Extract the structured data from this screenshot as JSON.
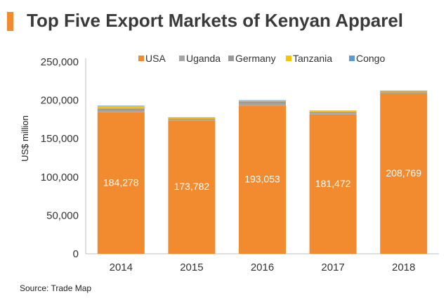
{
  "title": "Top Five Export Markets of Kenyan Apparel",
  "source": "Source: Trade Map",
  "chart_data": {
    "type": "bar",
    "stacked": true,
    "title": "Top Five Export Markets of Kenyan Apparel",
    "xlabel": "",
    "ylabel": "US$ million",
    "ylim": [
      0,
      250000
    ],
    "yticks": [
      "0",
      "50,000",
      "100,000",
      "150,000",
      "200,000",
      "250,000"
    ],
    "categories": [
      "2014",
      "2015",
      "2016",
      "2017",
      "2018"
    ],
    "legend_position": "top",
    "grid": false,
    "series": [
      {
        "name": "USA",
        "color": "#f28a30",
        "values": [
          184278,
          173782,
          193053,
          181472,
          208769
        ],
        "labels": [
          "184,278",
          "173,782",
          "193,053",
          "181,472",
          "208,769"
        ]
      },
      {
        "name": "Uganda",
        "color": "#a5a5a5",
        "values": [
          2000,
          1000,
          2500,
          1500,
          1200
        ]
      },
      {
        "name": "Germany",
        "color": "#9a9a9a",
        "values": [
          3000,
          1000,
          3000,
          1500,
          1000
        ]
      },
      {
        "name": "Tanzania",
        "color": "#ffc000",
        "values": [
          3000,
          1500,
          1000,
          1500,
          1000
        ]
      },
      {
        "name": "Congo",
        "color": "#5b9bd5",
        "values": [
          600,
          500,
          500,
          500,
          600
        ]
      }
    ]
  }
}
